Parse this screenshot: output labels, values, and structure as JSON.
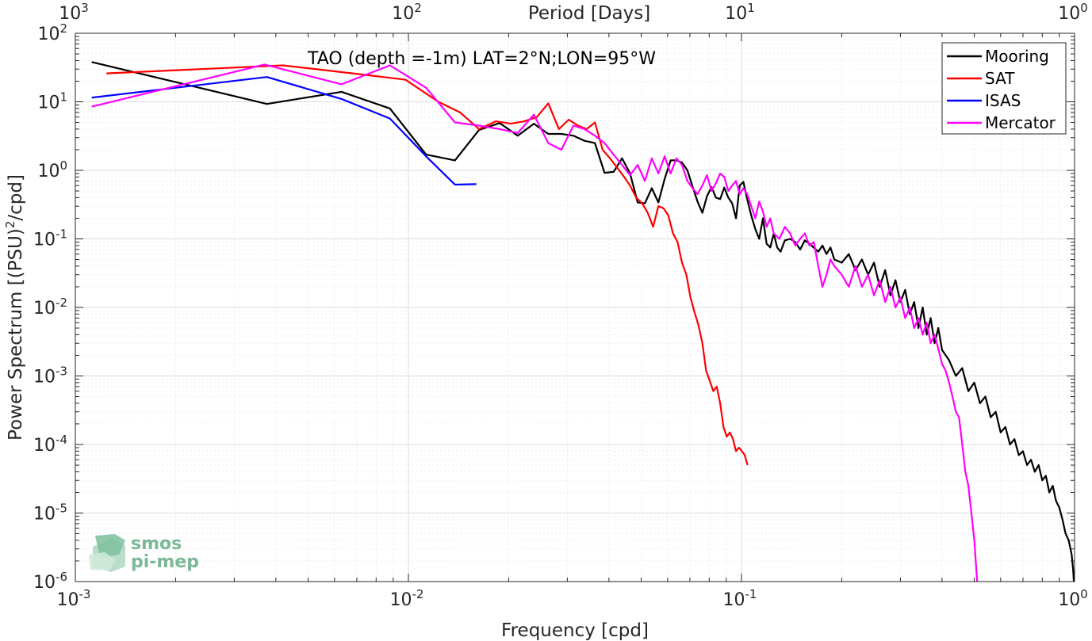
{
  "chart_data": {
    "type": "line",
    "title": "TAO (depth =-1m) LAT=2°N;LON=95°W",
    "xlabel": "Frequency [cpd]",
    "ylabel": "Power Spectrum [(PSU)^2/cpd]",
    "top_xlabel": "Period [Days]",
    "xscale": "log",
    "yscale": "log",
    "xlim": [
      0.001,
      1
    ],
    "ylim": [
      1e-06,
      100
    ],
    "grid": true,
    "legend_position": "top-right",
    "x_ticks": [
      {
        "base": "10",
        "exp": "-3"
      },
      {
        "base": "10",
        "exp": "-2"
      },
      {
        "base": "10",
        "exp": "-1"
      },
      {
        "base": "10",
        "exp": "0"
      }
    ],
    "y_ticks": [
      {
        "base": "10",
        "exp": "2"
      },
      {
        "base": "10",
        "exp": "1"
      },
      {
        "base": "10",
        "exp": "0"
      },
      {
        "base": "10",
        "exp": "-1"
      },
      {
        "base": "10",
        "exp": "-2"
      },
      {
        "base": "10",
        "exp": "-3"
      },
      {
        "base": "10",
        "exp": "-4"
      },
      {
        "base": "10",
        "exp": "-5"
      },
      {
        "base": "10",
        "exp": "-6"
      }
    ],
    "top_ticks": [
      {
        "base": "10",
        "exp": "3"
      },
      {
        "base": "10",
        "exp": "2"
      },
      {
        "base": "10",
        "exp": "1"
      },
      {
        "base": "10",
        "exp": "0"
      }
    ],
    "series": [
      {
        "name": "Mooring",
        "color": "#000000",
        "points": [
          [
            0.00112,
            38
          ],
          [
            0.00376,
            9.3
          ],
          [
            0.0063,
            14
          ],
          [
            0.0088,
            8
          ],
          [
            0.0113,
            1.7
          ],
          [
            0.0138,
            1.4
          ],
          [
            0.0163,
            3.9
          ],
          [
            0.0188,
            4.9
          ],
          [
            0.0213,
            3.2
          ],
          [
            0.0238,
            4.8
          ],
          [
            0.0263,
            3.4
          ],
          [
            0.0288,
            3.4
          ],
          [
            0.0313,
            3.2
          ],
          [
            0.0338,
            2.7
          ],
          [
            0.0363,
            2.5
          ],
          [
            0.0388,
            0.92
          ],
          [
            0.0413,
            0.95
          ],
          [
            0.0438,
            1.5
          ],
          [
            0.0463,
            0.9
          ],
          [
            0.0488,
            0.34
          ],
          [
            0.0513,
            0.33
          ],
          [
            0.0538,
            0.55
          ],
          [
            0.0563,
            0.34
          ],
          [
            0.0588,
            0.75
          ],
          [
            0.0613,
            1.4
          ],
          [
            0.0638,
            1.4
          ],
          [
            0.0663,
            1.3
          ],
          [
            0.0688,
            1.0
          ],
          [
            0.0713,
            0.58
          ],
          [
            0.0738,
            0.35
          ],
          [
            0.0763,
            0.24
          ],
          [
            0.0788,
            0.42
          ],
          [
            0.0813,
            0.57
          ],
          [
            0.0838,
            0.4
          ],
          [
            0.0863,
            0.38
          ],
          [
            0.0888,
            0.56
          ],
          [
            0.0913,
            0.4
          ],
          [
            0.0938,
            0.33
          ],
          [
            0.0963,
            0.2
          ],
          [
            0.0988,
            0.6
          ],
          [
            0.1013,
            0.68
          ],
          [
            0.104,
            0.38
          ],
          [
            0.107,
            0.22
          ],
          [
            0.11,
            0.14
          ],
          [
            0.113,
            0.1
          ],
          [
            0.116,
            0.2
          ],
          [
            0.119,
            0.085
          ],
          [
            0.122,
            0.075
          ],
          [
            0.125,
            0.12
          ],
          [
            0.128,
            0.075
          ],
          [
            0.131,
            0.065
          ],
          [
            0.135,
            0.095
          ],
          [
            0.14,
            0.1
          ],
          [
            0.145,
            0.09
          ],
          [
            0.15,
            0.07
          ],
          [
            0.155,
            0.095
          ],
          [
            0.16,
            0.085
          ],
          [
            0.17,
            0.065
          ],
          [
            0.175,
            0.08
          ],
          [
            0.18,
            0.06
          ],
          [
            0.185,
            0.075
          ],
          [
            0.19,
            0.05
          ],
          [
            0.2,
            0.045
          ],
          [
            0.21,
            0.06
          ],
          [
            0.22,
            0.035
          ],
          [
            0.23,
            0.05
          ],
          [
            0.24,
            0.03
          ],
          [
            0.25,
            0.045
          ],
          [
            0.26,
            0.02
          ],
          [
            0.27,
            0.035
          ],
          [
            0.28,
            0.015
          ],
          [
            0.29,
            0.025
          ],
          [
            0.3,
            0.012
          ],
          [
            0.31,
            0.018
          ],
          [
            0.32,
            0.008
          ],
          [
            0.33,
            0.012
          ],
          [
            0.34,
            0.005
          ],
          [
            0.35,
            0.01
          ],
          [
            0.36,
            0.004
          ],
          [
            0.37,
            0.007
          ],
          [
            0.38,
            0.003
          ],
          [
            0.39,
            0.005
          ],
          [
            0.4,
            0.0024
          ],
          [
            0.42,
            0.0017
          ],
          [
            0.44,
            0.001
          ],
          [
            0.46,
            0.0013
          ],
          [
            0.48,
            0.0006
          ],
          [
            0.5,
            0.0008
          ],
          [
            0.52,
            0.0004
          ],
          [
            0.54,
            0.0005
          ],
          [
            0.56,
            0.00025
          ],
          [
            0.58,
            0.0003
          ],
          [
            0.6,
            0.00015
          ],
          [
            0.62,
            0.00018
          ],
          [
            0.64,
            0.0001
          ],
          [
            0.66,
            0.00012
          ],
          [
            0.68,
            7e-05
          ],
          [
            0.7,
            8e-05
          ],
          [
            0.72,
            5e-05
          ],
          [
            0.74,
            6e-05
          ],
          [
            0.76,
            4e-05
          ],
          [
            0.78,
            5e-05
          ],
          [
            0.8,
            3e-05
          ],
          [
            0.82,
            3.5e-05
          ],
          [
            0.84,
            2e-05
          ],
          [
            0.86,
            2.5e-05
          ],
          [
            0.88,
            1.5e-05
          ],
          [
            0.9,
            1.2e-05
          ],
          [
            0.92,
            8e-06
          ],
          [
            0.94,
            5e-06
          ],
          [
            0.96,
            4e-06
          ],
          [
            0.98,
            2.5e-06
          ],
          [
            0.99,
            1.5e-06
          ],
          [
            0.995,
            1e-06
          ]
        ]
      },
      {
        "name": "SAT",
        "color": "#ff0000",
        "points": [
          [
            0.00124,
            26
          ],
          [
            0.0042,
            34
          ],
          [
            0.0073,
            25
          ],
          [
            0.0098,
            21
          ],
          [
            0.0123,
            10
          ],
          [
            0.0143,
            7
          ],
          [
            0.0163,
            4
          ],
          [
            0.0183,
            5.2
          ],
          [
            0.0203,
            4.8
          ],
          [
            0.0223,
            5.2
          ],
          [
            0.0243,
            6
          ],
          [
            0.0263,
            9.5
          ],
          [
            0.0283,
            4
          ],
          [
            0.0303,
            5.5
          ],
          [
            0.0323,
            4.5
          ],
          [
            0.0343,
            4
          ],
          [
            0.0363,
            5
          ],
          [
            0.0383,
            2
          ],
          [
            0.0403,
            1.5
          ],
          [
            0.0423,
            1.1
          ],
          [
            0.0443,
            0.82
          ],
          [
            0.0463,
            0.6
          ],
          [
            0.0483,
            0.4
          ],
          [
            0.0503,
            0.33
          ],
          [
            0.0523,
            0.24
          ],
          [
            0.0543,
            0.15
          ],
          [
            0.0563,
            0.3
          ],
          [
            0.0583,
            0.28
          ],
          [
            0.0603,
            0.22
          ],
          [
            0.0623,
            0.12
          ],
          [
            0.0643,
            0.09
          ],
          [
            0.0663,
            0.045
          ],
          [
            0.0683,
            0.03
          ],
          [
            0.0703,
            0.014
          ],
          [
            0.0723,
            0.0085
          ],
          [
            0.0743,
            0.0055
          ],
          [
            0.0763,
            0.003
          ],
          [
            0.0783,
            0.0012
          ],
          [
            0.0803,
            0.00085
          ],
          [
            0.0823,
            0.0006
          ],
          [
            0.0843,
            0.0007
          ],
          [
            0.0863,
            0.0004
          ],
          [
            0.0883,
            0.00018
          ],
          [
            0.0903,
            0.00013
          ],
          [
            0.0923,
            0.00015
          ],
          [
            0.0943,
            0.00012
          ],
          [
            0.0963,
            8e-05
          ],
          [
            0.0983,
            9e-05
          ],
          [
            0.1003,
            8e-05
          ],
          [
            0.1023,
            7e-05
          ],
          [
            0.1043,
            5e-05
          ]
        ]
      },
      {
        "name": "ISAS",
        "color": "#0000ff",
        "points": [
          [
            0.00112,
            11.5
          ],
          [
            0.00376,
            23
          ],
          [
            0.0063,
            11
          ],
          [
            0.0088,
            5.7
          ],
          [
            0.0113,
            1.6
          ],
          [
            0.0138,
            0.62
          ],
          [
            0.016,
            0.63
          ]
        ]
      },
      {
        "name": "Mercator",
        "color": "#ff00ff",
        "points": [
          [
            0.00112,
            8.5
          ],
          [
            0.0037,
            35
          ],
          [
            0.0063,
            18
          ],
          [
            0.0088,
            34
          ],
          [
            0.0113,
            16
          ],
          [
            0.0138,
            5
          ],
          [
            0.0163,
            4.5
          ],
          [
            0.0188,
            4
          ],
          [
            0.0213,
            3.5
          ],
          [
            0.0238,
            6.5
          ],
          [
            0.0263,
            2.5
          ],
          [
            0.0288,
            2
          ],
          [
            0.0313,
            4.5
          ],
          [
            0.0338,
            4
          ],
          [
            0.0363,
            3.2
          ],
          [
            0.0388,
            2.5
          ],
          [
            0.0413,
            1.7
          ],
          [
            0.0438,
            1.2
          ],
          [
            0.0463,
            0.85
          ],
          [
            0.0488,
            1.2
          ],
          [
            0.0513,
            0.7
          ],
          [
            0.0538,
            1.5
          ],
          [
            0.0563,
            0.9
          ],
          [
            0.0588,
            1.6
          ],
          [
            0.0613,
            0.9
          ],
          [
            0.0638,
            1.5
          ],
          [
            0.0663,
            1.2
          ],
          [
            0.0688,
            0.7
          ],
          [
            0.0713,
            0.55
          ],
          [
            0.0738,
            0.45
          ],
          [
            0.0763,
            0.6
          ],
          [
            0.0788,
            0.85
          ],
          [
            0.0813,
            0.5
          ],
          [
            0.0838,
            0.65
          ],
          [
            0.0863,
            0.9
          ],
          [
            0.0888,
            0.8
          ],
          [
            0.0913,
            0.5
          ],
          [
            0.0938,
            0.6
          ],
          [
            0.0963,
            0.7
          ],
          [
            0.0988,
            0.45
          ],
          [
            0.1013,
            0.55
          ],
          [
            0.104,
            0.45
          ],
          [
            0.107,
            0.3
          ],
          [
            0.11,
            0.2
          ],
          [
            0.113,
            0.35
          ],
          [
            0.116,
            0.25
          ],
          [
            0.119,
            0.15
          ],
          [
            0.122,
            0.2
          ],
          [
            0.125,
            0.12
          ],
          [
            0.13,
            0.1
          ],
          [
            0.135,
            0.15
          ],
          [
            0.14,
            0.12
          ],
          [
            0.145,
            0.08
          ],
          [
            0.15,
            0.1
          ],
          [
            0.155,
            0.12
          ],
          [
            0.16,
            0.08
          ],
          [
            0.165,
            0.09
          ],
          [
            0.17,
            0.04
          ],
          [
            0.175,
            0.02
          ],
          [
            0.18,
            0.03
          ],
          [
            0.185,
            0.05
          ],
          [
            0.19,
            0.04
          ],
          [
            0.2,
            0.03
          ],
          [
            0.21,
            0.02
          ],
          [
            0.22,
            0.04
          ],
          [
            0.23,
            0.02
          ],
          [
            0.24,
            0.03
          ],
          [
            0.25,
            0.015
          ],
          [
            0.26,
            0.025
          ],
          [
            0.27,
            0.012
          ],
          [
            0.28,
            0.02
          ],
          [
            0.29,
            0.01
          ],
          [
            0.3,
            0.014
          ],
          [
            0.31,
            0.007
          ],
          [
            0.32,
            0.01
          ],
          [
            0.33,
            0.005
          ],
          [
            0.34,
            0.007
          ],
          [
            0.35,
            0.004
          ],
          [
            0.36,
            0.006
          ],
          [
            0.37,
            0.003
          ],
          [
            0.38,
            0.004
          ],
          [
            0.39,
            0.0025
          ],
          [
            0.4,
            0.0015
          ],
          [
            0.41,
            0.0012
          ],
          [
            0.42,
            0.0008
          ],
          [
            0.43,
            0.0005
          ],
          [
            0.44,
            0.0003
          ],
          [
            0.45,
            0.00025
          ],
          [
            0.46,
            0.0001
          ],
          [
            0.47,
            4e-05
          ],
          [
            0.48,
            2.5e-05
          ],
          [
            0.49,
            1e-05
          ],
          [
            0.5,
            4e-06
          ],
          [
            0.505,
            2e-06
          ],
          [
            0.51,
            1e-06
          ]
        ]
      }
    ]
  },
  "logo": {
    "line1": "smos",
    "line2": "pi-mep"
  }
}
